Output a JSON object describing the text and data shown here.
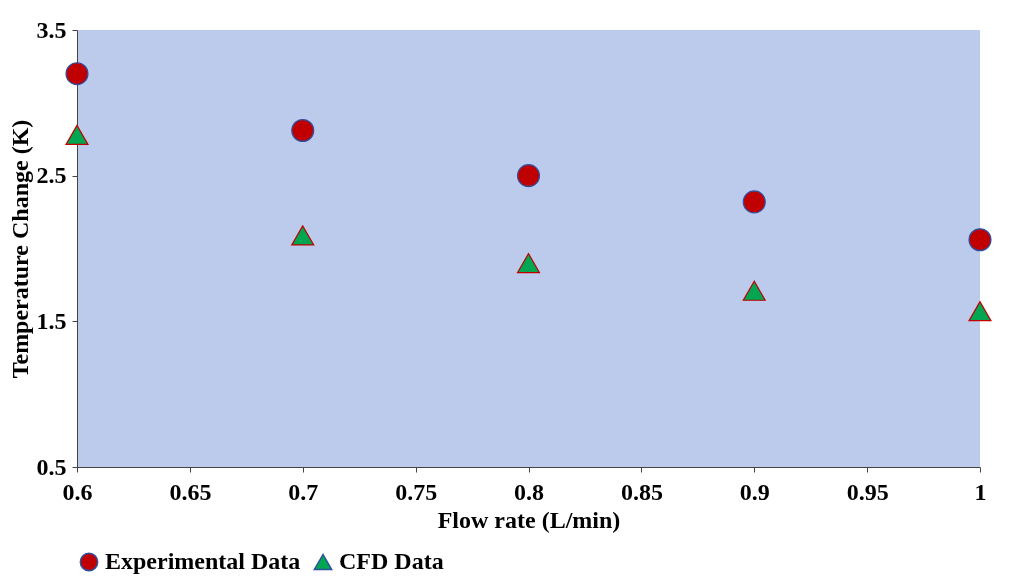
{
  "chart_data": {
    "type": "scatter",
    "xlabel": "Flow rate (L/min)",
    "ylabel": "Temperature Change (K)",
    "x": [
      0.6,
      0.7,
      0.8,
      0.9,
      1.0
    ],
    "series": [
      {
        "name": "Experimental Data",
        "color": "#c00000",
        "marker": "circle",
        "values": [
          3.2,
          2.81,
          2.5,
          2.32,
          2.06
        ]
      },
      {
        "name": "CFD Data",
        "color": "#00a651",
        "marker": "triangle",
        "values": [
          2.78,
          2.09,
          1.9,
          1.71,
          1.57
        ]
      }
    ],
    "xlim": [
      0.6,
      1.0
    ],
    "xticks": [
      0.6,
      0.65,
      0.7,
      0.75,
      0.8,
      0.85,
      0.9,
      0.95,
      {
        "value": 1.0,
        "label": "1"
      }
    ],
    "ylim": [
      0.5,
      3.5
    ],
    "yticks": [
      0.5,
      1.5,
      2.5,
      3.5
    ],
    "grid": false,
    "legend": "bottom"
  }
}
